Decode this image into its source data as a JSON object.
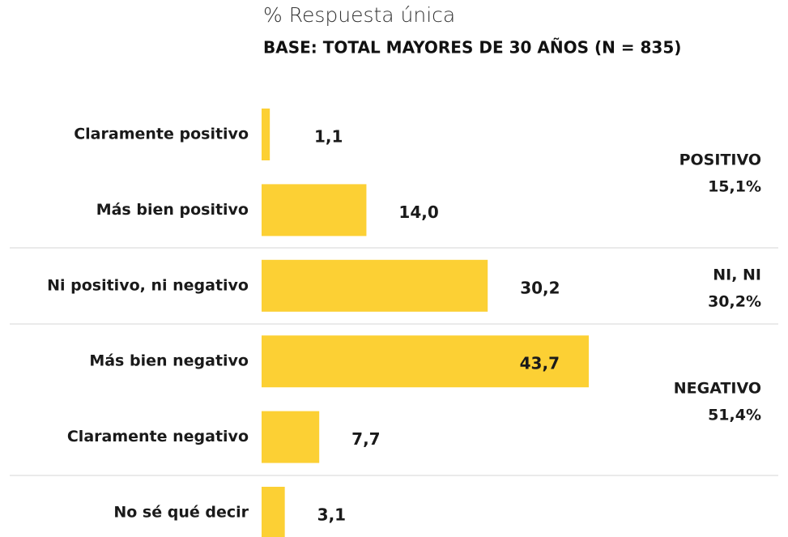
{
  "chart_data": {
    "type": "bar",
    "orientation": "horizontal",
    "title": "% Respuesta única",
    "subtitle": "BASE: TOTAL MAYORES DE 30 AÑOS (N = 835)",
    "categories": [
      "Claramente positivo",
      "Más bien positivo",
      "Ni positivo, ni negativo",
      "Más bien negativo",
      "Claramente negativo",
      "No sé qué decir"
    ],
    "values": [
      1.1,
      14.0,
      30.2,
      43.7,
      7.7,
      3.1
    ],
    "value_labels": [
      "1,1",
      "14,0",
      "30,2",
      "43,7",
      "7,7",
      "3,1"
    ],
    "color": "#fcd034",
    "groups": [
      {
        "name": "POSITIVO",
        "value": 15.1,
        "value_label": "15,1%"
      },
      {
        "name": "NI, NI",
        "value": 30.2,
        "value_label": "30,2%"
      },
      {
        "name": "NEGATIVO",
        "value": 51.4,
        "value_label": "51,4%"
      }
    ]
  }
}
